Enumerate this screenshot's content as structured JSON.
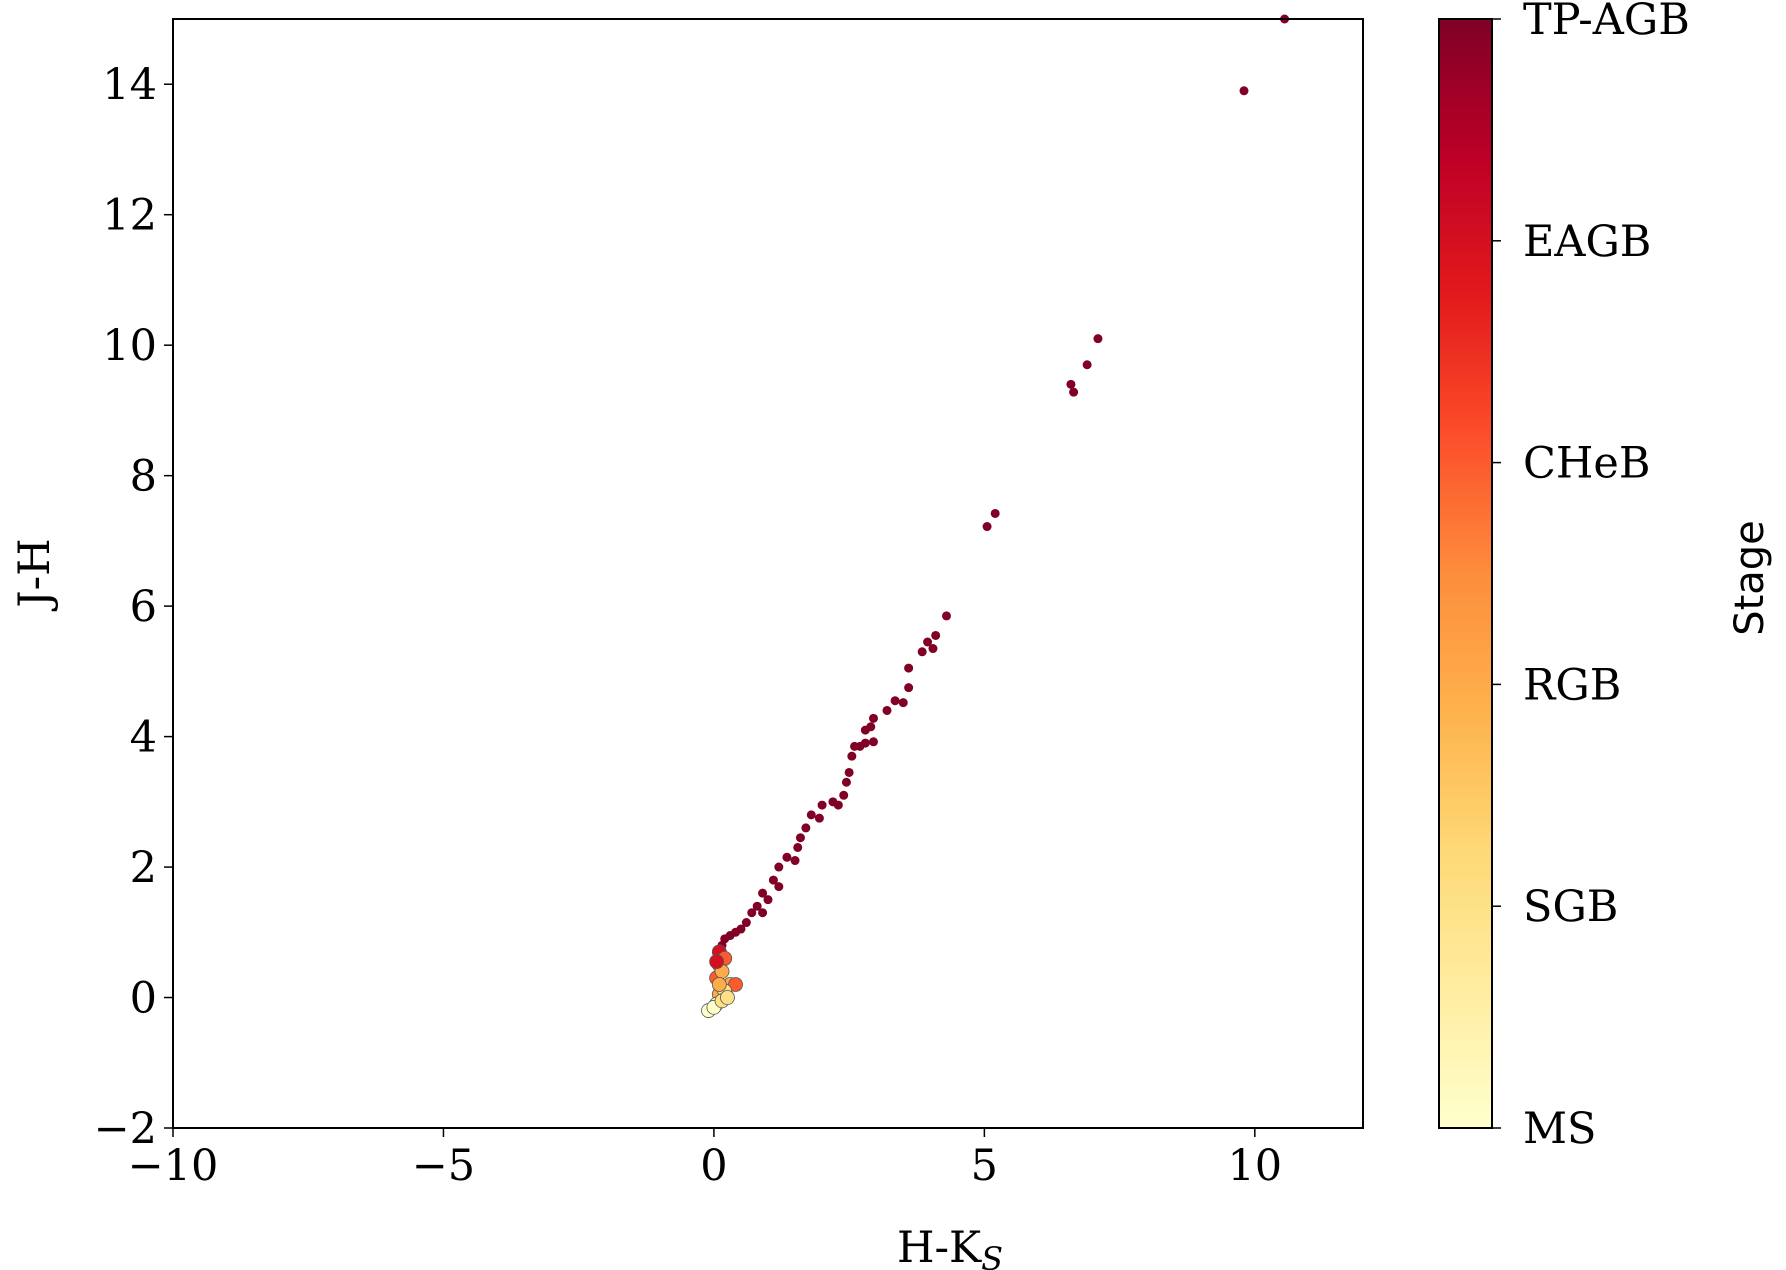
{
  "chart_data": {
    "type": "scatter",
    "xlabel": {
      "text": "H-K",
      "subscript": "S"
    },
    "ylabel": "J-H",
    "xlim": [
      -10,
      12
    ],
    "ylim": [
      -2,
      15
    ],
    "xticks": [
      {
        "value": -10,
        "label": "−10"
      },
      {
        "value": -5,
        "label": "−5"
      },
      0,
      5,
      10
    ],
    "yticks": [
      {
        "value": -2,
        "label": "−2"
      },
      0,
      2,
      4,
      6,
      8,
      10,
      12,
      14
    ],
    "x": [
      10.55,
      9.8,
      7.1,
      6.9,
      6.6,
      6.65,
      5.2,
      5.05,
      4.3,
      4.1,
      3.95,
      4.05,
      3.85,
      3.6,
      3.6,
      3.35,
      3.5,
      3.2,
      2.95,
      2.9,
      2.8,
      2.8,
      2.95,
      2.6,
      2.7,
      2.55,
      2.5,
      2.45,
      2.4,
      2.2,
      2.0,
      2.3,
      1.8,
      1.95,
      1.7,
      1.6,
      1.55,
      1.35,
      1.5,
      1.2,
      1.1,
      1.2,
      0.9,
      1.0,
      0.8,
      0.9,
      0.7,
      0.6,
      0.5,
      0.4,
      0.3,
      0.2,
      0.15,
      0.1,
      0.1,
      0.05,
      0.2,
      0.15,
      0.3,
      0.4,
      0.1,
      0.2,
      0.05,
      -0.1,
      0.0,
      0.15,
      0.25,
      0.1,
      0.05
    ],
    "y": [
      15.0,
      13.9,
      10.1,
      9.7,
      9.4,
      9.28,
      7.42,
      7.22,
      5.85,
      5.55,
      5.45,
      5.35,
      5.3,
      5.05,
      4.75,
      4.55,
      4.52,
      4.4,
      4.28,
      4.15,
      4.1,
      3.9,
      3.92,
      3.85,
      3.85,
      3.7,
      3.45,
      3.3,
      3.1,
      3.0,
      2.95,
      2.95,
      2.8,
      2.75,
      2.6,
      2.45,
      2.3,
      2.15,
      2.1,
      2.0,
      1.8,
      1.7,
      1.6,
      1.5,
      1.4,
      1.3,
      1.3,
      1.15,
      1.05,
      1.0,
      0.95,
      0.9,
      0.8,
      0.7,
      0.5,
      0.3,
      0.6,
      0.4,
      0.2,
      0.2,
      0.05,
      0.1,
      -0.1,
      -0.2,
      -0.15,
      -0.05,
      0.0,
      0.2,
      0.55
    ],
    "stage": [
      5,
      5,
      5,
      5,
      5,
      5,
      5,
      5,
      5,
      5,
      5,
      5,
      5,
      5,
      5,
      5,
      5,
      5,
      5,
      5,
      5,
      5,
      5,
      5,
      5,
      5,
      5,
      5,
      5,
      5,
      5,
      5,
      5,
      5,
      5,
      5,
      5,
      5,
      5,
      5,
      5,
      5,
      5,
      5,
      5,
      5,
      5,
      5,
      5,
      5,
      5,
      5,
      5,
      4,
      3,
      3,
      3,
      2,
      2,
      3,
      2,
      1,
      0,
      0,
      0,
      1,
      1,
      2,
      4
    ],
    "colorbar": {
      "label": "Stage",
      "lim": [
        0,
        5
      ],
      "ticks": [
        {
          "value": 0,
          "label": "MS"
        },
        {
          "value": 1,
          "label": "SGB"
        },
        {
          "value": 2,
          "label": "RGB"
        },
        {
          "value": 3,
          "label": "CHeB"
        },
        {
          "value": 4,
          "label": "EAGB"
        },
        {
          "value": 5,
          "label": "TP-AGB"
        }
      ],
      "colormap": [
        "#ffffcc",
        "#ffeda0",
        "#fed976",
        "#feb24c",
        "#fd8d3c",
        "#fc4e2a",
        "#e31a1c",
        "#bd0026",
        "#800026"
      ]
    }
  }
}
